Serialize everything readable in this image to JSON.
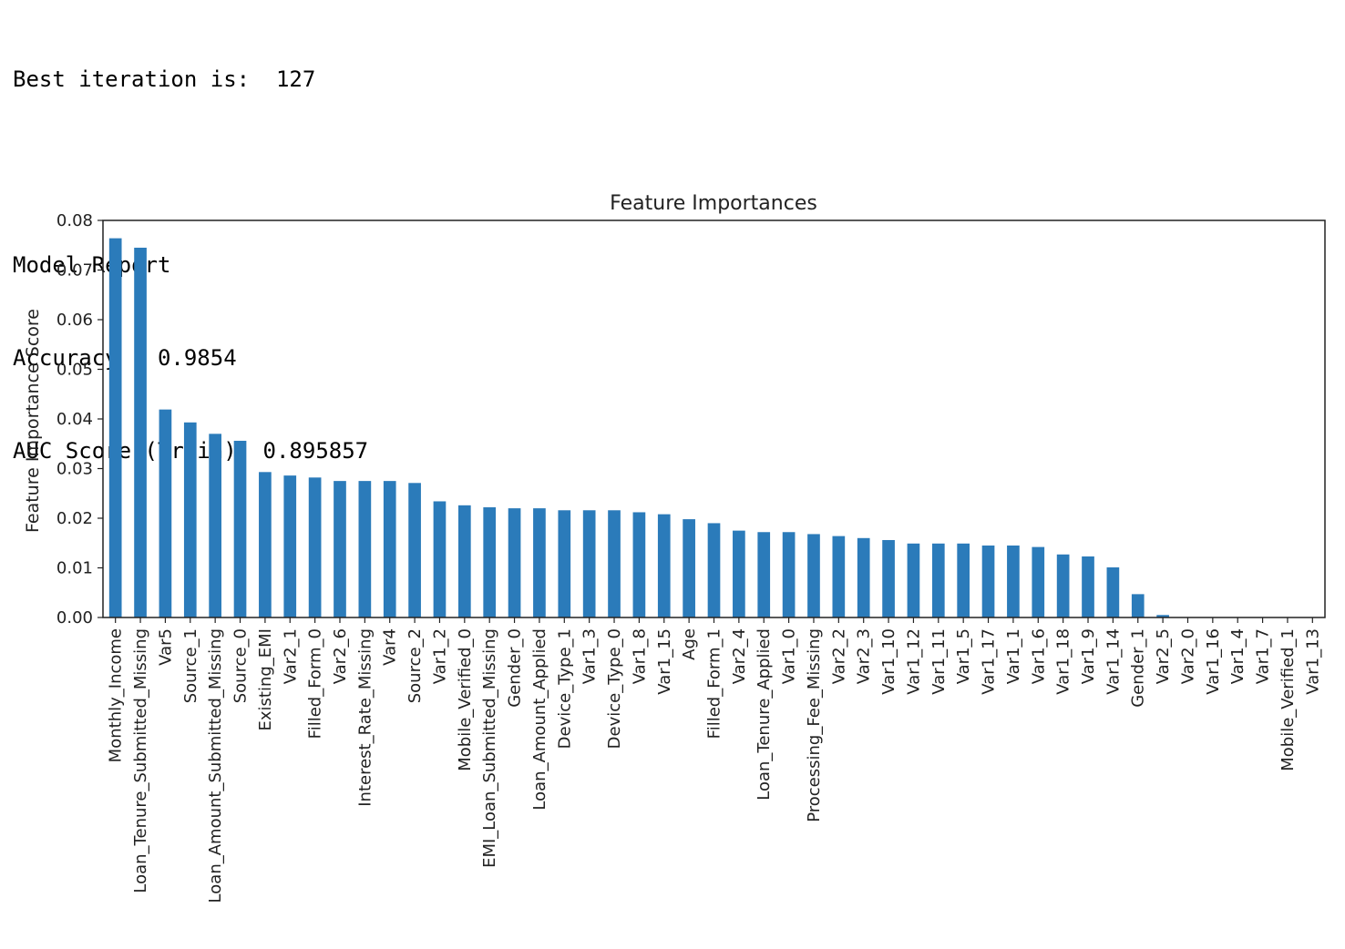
{
  "console": {
    "best_iteration": "Best iteration is:  127",
    "report_title": "Model Report",
    "accuracy": "Accuracy : 0.9854",
    "auc": "AUC Score (Train): 0.895857"
  },
  "chart_data": {
    "type": "bar",
    "title": "Feature Importances",
    "xlabel": "",
    "ylabel": "Feature Importance Score",
    "ylim": [
      0,
      0.08
    ],
    "yticks": [
      "0.00",
      "0.01",
      "0.02",
      "0.03",
      "0.04",
      "0.05",
      "0.06",
      "0.07",
      "0.08"
    ],
    "grid": false,
    "bar_color": "#2b7bba",
    "categories": [
      "Monthly_Income",
      "Loan_Tenure_Submitted_Missing",
      "Var5",
      "Source_1",
      "Loan_Amount_Submitted_Missing",
      "Source_0",
      "Existing_EMI",
      "Var2_1",
      "Filled_Form_0",
      "Var2_6",
      "Interest_Rate_Missing",
      "Var4",
      "Source_2",
      "Var1_2",
      "Mobile_Verified_0",
      "EMI_Loan_Submitted_Missing",
      "Gender_0",
      "Loan_Amount_Applied",
      "Device_Type_1",
      "Var1_3",
      "Device_Type_0",
      "Var1_8",
      "Var1_15",
      "Age",
      "Filled_Form_1",
      "Var2_4",
      "Loan_Tenure_Applied",
      "Var1_0",
      "Processing_Fee_Missing",
      "Var2_2",
      "Var2_3",
      "Var1_10",
      "Var1_12",
      "Var1_11",
      "Var1_5",
      "Var1_17",
      "Var1_1",
      "Var1_6",
      "Var1_18",
      "Var1_9",
      "Var1_14",
      "Gender_1",
      "Var2_5",
      "Var2_0",
      "Var1_16",
      "Var1_4",
      "Var1_7",
      "Mobile_Verified_1",
      "Var1_13"
    ],
    "values": [
      0.0764,
      0.0745,
      0.0419,
      0.0393,
      0.037,
      0.0356,
      0.0293,
      0.0286,
      0.0282,
      0.0275,
      0.0275,
      0.0275,
      0.0271,
      0.0234,
      0.0226,
      0.0222,
      0.022,
      0.022,
      0.0216,
      0.0216,
      0.0216,
      0.0212,
      0.0208,
      0.0198,
      0.019,
      0.0175,
      0.0172,
      0.0172,
      0.0168,
      0.0164,
      0.016,
      0.0156,
      0.0149,
      0.0149,
      0.0149,
      0.0145,
      0.0145,
      0.0142,
      0.0127,
      0.0123,
      0.0101,
      0.0047,
      0.0005,
      0.0,
      0.0,
      0.0,
      0.0,
      0.0,
      0.0
    ]
  }
}
